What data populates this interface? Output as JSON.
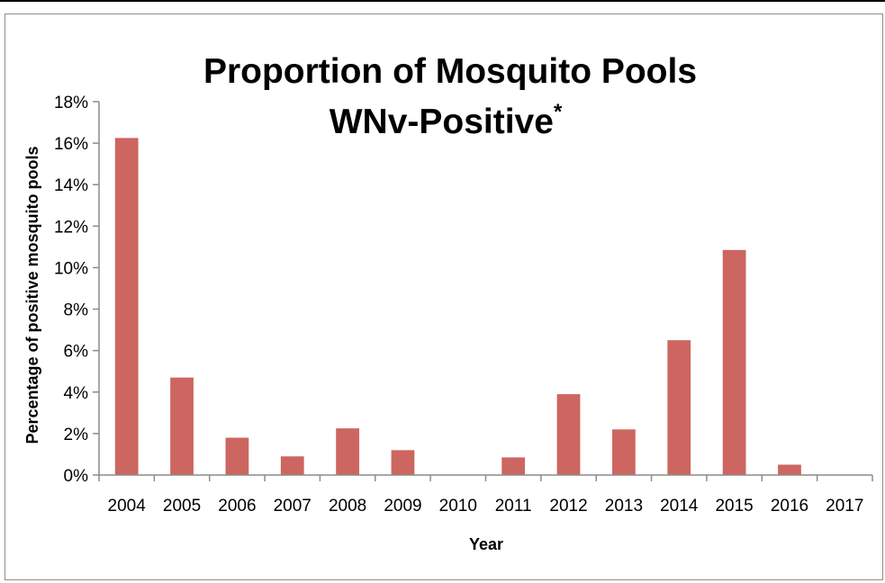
{
  "chart_data": {
    "type": "bar",
    "title": "Proportion of Mosquito Pools",
    "title_line2": "WNv-Positive",
    "title_superscript": "*",
    "xlabel": "Year",
    "ylabel": "Percentage of positive mosquito pools",
    "categories": [
      "2004",
      "2005",
      "2006",
      "2007",
      "2008",
      "2009",
      "2010",
      "2011",
      "2012",
      "2013",
      "2014",
      "2015",
      "2016",
      "2017"
    ],
    "values": [
      16.25,
      4.7,
      1.8,
      0.9,
      2.25,
      1.2,
      0,
      0.85,
      3.9,
      2.2,
      6.5,
      10.85,
      0.5,
      0
    ],
    "ylim": [
      0,
      18
    ],
    "yticks": [
      0,
      2,
      4,
      6,
      8,
      10,
      12,
      14,
      16,
      18
    ],
    "ytick_labels": [
      "0%",
      "2%",
      "4%",
      "6%",
      "8%",
      "10%",
      "12%",
      "14%",
      "16%",
      "18%"
    ],
    "bar_color": "#cd6660",
    "grid": false,
    "legend": "none"
  }
}
